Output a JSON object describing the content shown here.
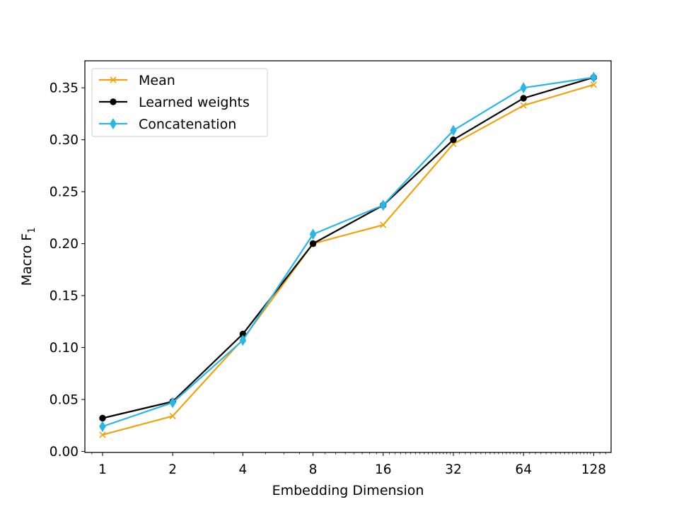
{
  "chart_data": {
    "type": "line",
    "title": "",
    "xlabel": "Embedding Dimension",
    "ylabel": "Macro F",
    "ylabel_subscript": "1",
    "x_scale": "log2",
    "x": [
      1,
      2,
      4,
      8,
      16,
      32,
      64,
      128
    ],
    "x_tick_labels": [
      "1",
      "2",
      "4",
      "8",
      "16",
      "32",
      "64",
      "128"
    ],
    "xlim": [
      0.84,
      152
    ],
    "ylim": [
      -0.001,
      0.376
    ],
    "y_ticks": [
      0.0,
      0.05,
      0.1,
      0.15,
      0.2,
      0.25,
      0.3,
      0.35
    ],
    "y_tick_labels": [
      "0.00",
      "0.05",
      "0.10",
      "0.15",
      "0.20",
      "0.25",
      "0.30",
      "0.35"
    ],
    "grid": false,
    "legend_position": "top-left",
    "series": [
      {
        "name": "Mean",
        "color": "#f0a30a",
        "marker": "x",
        "values": [
          0.016,
          0.034,
          0.108,
          0.2,
          0.218,
          0.296,
          0.333,
          0.353
        ]
      },
      {
        "name": "Learned weights",
        "color": "#000000",
        "marker": "circle",
        "values": [
          0.032,
          0.048,
          0.113,
          0.2,
          0.237,
          0.3,
          0.34,
          0.36
        ]
      },
      {
        "name": "Concatenation",
        "color": "#29b6e6",
        "marker": "thin-diamond",
        "values": [
          0.024,
          0.047,
          0.107,
          0.209,
          0.237,
          0.309,
          0.35,
          0.36
        ]
      }
    ]
  }
}
